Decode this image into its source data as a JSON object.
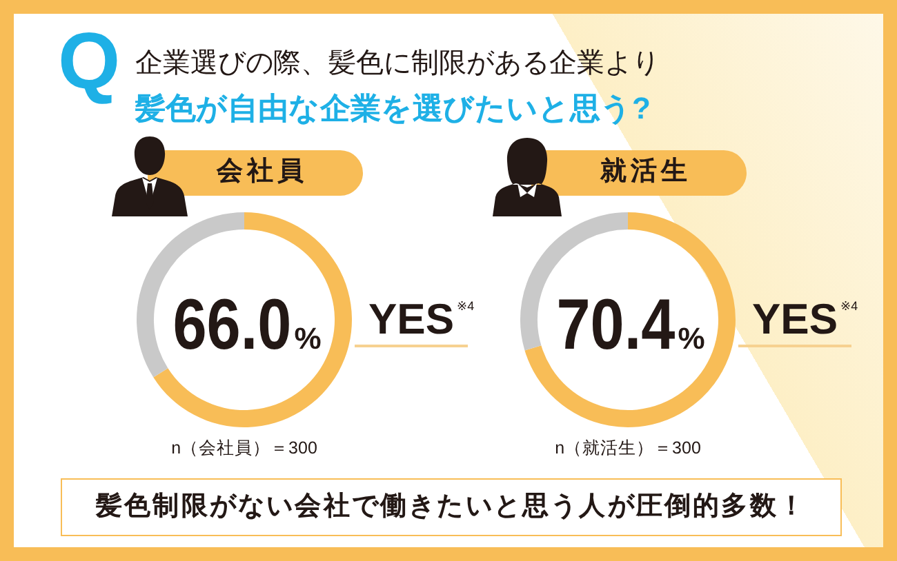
{
  "chart_data": [
    {
      "type": "other",
      "title": "企業選びの際、髪色に制限がある企業より",
      "subtitle": "髪色が自由な企業を選びたいと思う?",
      "annotations": [
        "Q"
      ]
    },
    {
      "type": "donut",
      "title": "会社員",
      "categories": [
        "YES$^{※4}$",
        null
      ],
      "values": [
        66.0,
        34.0
      ],
      "colors": [
        "#f8bd57",
        "#c9c9c9"
      ],
      "value_labels": [
        "66.0%",
        null
      ],
      "annotations": [
        "n（会社員）＝300"
      ]
    },
    {
      "type": "donut",
      "title": "就活生",
      "categories": [
        "YES$^{※4}$",
        null
      ],
      "values": [
        70.4,
        29.6
      ],
      "colors": [
        "#f8bd57",
        "#c9c9c9"
      ],
      "value_labels": [
        "70.4%",
        null
      ],
      "annotations": [
        "n（就活生）＝300"
      ]
    },
    {
      "type": "other",
      "annotations": [
        "髪色制限がない会社で働きたいと思う人が圧倒的多数！"
      ]
    }
  ]
}
